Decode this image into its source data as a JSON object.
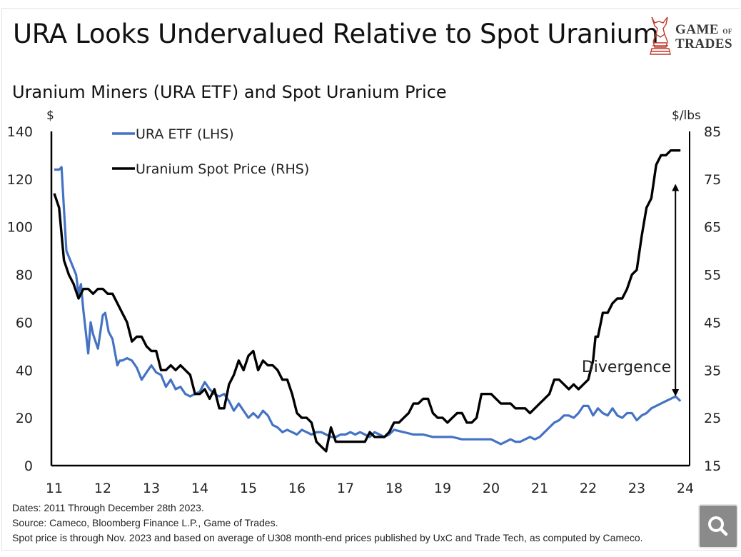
{
  "header": {
    "title": "URA Looks Undervalued Relative to Spot Uranium",
    "logo": {
      "icon": "bull-knight-chess-icon",
      "line1": "GAME",
      "line1_small": "OF",
      "line2": "TRADES",
      "color": "#c0392b"
    }
  },
  "chart_data": {
    "type": "line",
    "title": "Uranium Miners (URA ETF) and Spot Uranium Price",
    "xlabel": "",
    "ylabel_left": "$",
    "ylabel_right": "$/lbs",
    "x_ticks": [
      "11",
      "12",
      "13",
      "14",
      "15",
      "16",
      "17",
      "18",
      "19",
      "20",
      "21",
      "22",
      "23",
      "24"
    ],
    "xlim": [
      2011,
      2024
    ],
    "y_left": {
      "ticks": [
        "0",
        "20",
        "40",
        "60",
        "80",
        "100",
        "120",
        "140"
      ],
      "lim": [
        0,
        140
      ]
    },
    "y_right": {
      "ticks": [
        "15",
        "25",
        "35",
        "45",
        "55",
        "65",
        "75",
        "85"
      ],
      "lim": [
        15,
        85
      ]
    },
    "grid": false,
    "legend": {
      "placement": "top-left",
      "entries": [
        {
          "label": "URA ETF (LHS)",
          "color": "#4472c4"
        },
        {
          "label": "Uranium Spot Price (RHS)",
          "color": "#000000"
        }
      ]
    },
    "annotation": {
      "text": "Divergence",
      "type": "double-arrow",
      "x": 2023.9,
      "y_right_from": 29.5,
      "y_right_to": 74
    },
    "series": [
      {
        "name": "URA ETF (LHS)",
        "axis": "left",
        "color": "#4472c4",
        "x": [
          2011.0,
          2011.1,
          2011.15,
          2011.25,
          2011.35,
          2011.45,
          2011.5,
          2011.55,
          2011.6,
          2011.7,
          2011.75,
          2011.8,
          2011.9,
          2012.0,
          2012.05,
          2012.12,
          2012.2,
          2012.3,
          2012.35,
          2012.4,
          2012.5,
          2012.6,
          2012.7,
          2012.8,
          2012.9,
          2013.0,
          2013.1,
          2013.2,
          2013.3,
          2013.4,
          2013.5,
          2013.6,
          2013.7,
          2013.8,
          2013.9,
          2014.0,
          2014.1,
          2014.2,
          2014.3,
          2014.4,
          2014.5,
          2014.6,
          2014.7,
          2014.8,
          2014.9,
          2015.0,
          2015.1,
          2015.2,
          2015.3,
          2015.4,
          2015.5,
          2015.6,
          2015.7,
          2015.8,
          2015.9,
          2016.0,
          2016.1,
          2016.2,
          2016.3,
          2016.4,
          2016.5,
          2016.6,
          2016.7,
          2016.8,
          2016.9,
          2017.0,
          2017.1,
          2017.2,
          2017.3,
          2017.4,
          2017.5,
          2017.6,
          2017.7,
          2017.8,
          2017.9,
          2018.0,
          2018.2,
          2018.4,
          2018.6,
          2018.8,
          2019.0,
          2019.2,
          2019.4,
          2019.6,
          2019.8,
          2020.0,
          2020.1,
          2020.2,
          2020.3,
          2020.4,
          2020.5,
          2020.6,
          2020.7,
          2020.8,
          2020.9,
          2021.0,
          2021.1,
          2021.2,
          2021.3,
          2021.4,
          2021.5,
          2021.6,
          2021.7,
          2021.8,
          2021.9,
          2022.0,
          2022.1,
          2022.2,
          2022.3,
          2022.4,
          2022.5,
          2022.6,
          2022.7,
          2022.8,
          2022.9,
          2023.0,
          2023.1,
          2023.2,
          2023.3,
          2023.4,
          2023.5,
          2023.6,
          2023.7,
          2023.8,
          2023.9
        ],
        "y": [
          124,
          124,
          125,
          90,
          85,
          80,
          72,
          76,
          65,
          47,
          60,
          55,
          49,
          63,
          64,
          56,
          53,
          42,
          44,
          44,
          45,
          44,
          41,
          36,
          39,
          42,
          39,
          38,
          33,
          36,
          32,
          33,
          30,
          29,
          30,
          31,
          35,
          32,
          30,
          29,
          30,
          27,
          23,
          26,
          23,
          20,
          22,
          20,
          23,
          21,
          17,
          16,
          14,
          15,
          14,
          13,
          15,
          14,
          13,
          14,
          14,
          13,
          12,
          12,
          13,
          13,
          14,
          13,
          14,
          13,
          12,
          14,
          13,
          12,
          13,
          15,
          14,
          13,
          13,
          12,
          12,
          12,
          11,
          11,
          11,
          11,
          10,
          9,
          10,
          11,
          10,
          10,
          11,
          12,
          11,
          12,
          14,
          16,
          18,
          19,
          21,
          21,
          20,
          22,
          25,
          25,
          21,
          24,
          22,
          21,
          24,
          21,
          20,
          22,
          22,
          19,
          21,
          22,
          24,
          25,
          26,
          27,
          28,
          29,
          27
        ]
      },
      {
        "name": "Uranium Spot Price (RHS)",
        "axis": "right",
        "color": "#000000",
        "x": [
          2011.0,
          2011.1,
          2011.2,
          2011.3,
          2011.4,
          2011.5,
          2011.6,
          2011.7,
          2011.8,
          2011.9,
          2012.0,
          2012.1,
          2012.2,
          2012.3,
          2012.4,
          2012.5,
          2012.6,
          2012.7,
          2012.8,
          2012.9,
          2013.0,
          2013.1,
          2013.2,
          2013.3,
          2013.4,
          2013.5,
          2013.6,
          2013.7,
          2013.8,
          2013.9,
          2014.0,
          2014.1,
          2014.2,
          2014.3,
          2014.4,
          2014.5,
          2014.6,
          2014.7,
          2014.8,
          2014.9,
          2015.0,
          2015.1,
          2015.2,
          2015.3,
          2015.4,
          2015.5,
          2015.6,
          2015.7,
          2015.8,
          2015.9,
          2016.0,
          2016.1,
          2016.2,
          2016.3,
          2016.4,
          2016.5,
          2016.6,
          2016.7,
          2016.8,
          2016.9,
          2017.0,
          2017.1,
          2017.2,
          2017.3,
          2017.4,
          2017.5,
          2017.6,
          2017.7,
          2017.8,
          2017.9,
          2018.0,
          2018.1,
          2018.2,
          2018.3,
          2018.4,
          2018.5,
          2018.6,
          2018.7,
          2018.8,
          2018.9,
          2019.0,
          2019.1,
          2019.2,
          2019.3,
          2019.4,
          2019.5,
          2019.6,
          2019.7,
          2019.8,
          2019.9,
          2020.0,
          2020.1,
          2020.2,
          2020.3,
          2020.4,
          2020.5,
          2020.6,
          2020.7,
          2020.8,
          2020.9,
          2021.0,
          2021.1,
          2021.2,
          2021.3,
          2021.4,
          2021.5,
          2021.6,
          2021.7,
          2021.8,
          2021.9,
          2022.0,
          2022.1,
          2022.15,
          2022.2,
          2022.3,
          2022.4,
          2022.5,
          2022.6,
          2022.7,
          2022.8,
          2022.9,
          2023.0,
          2023.1,
          2023.2,
          2023.3,
          2023.4,
          2023.5,
          2023.6,
          2023.7,
          2023.75,
          2023.8,
          2023.9
        ],
        "y": [
          72,
          69,
          58,
          55,
          53,
          50,
          52,
          52,
          51,
          52,
          52,
          51,
          51,
          49,
          47,
          45,
          41,
          42,
          42,
          40,
          39,
          39,
          35,
          35,
          36,
          35,
          36,
          35,
          34,
          30,
          30,
          31,
          29,
          31,
          27,
          27,
          32,
          34,
          37,
          35,
          38,
          39,
          35,
          37,
          36,
          36,
          35,
          33,
          33,
          30,
          26,
          25,
          25,
          24,
          20,
          19,
          18,
          23,
          20,
          20,
          20,
          20,
          20,
          20,
          20,
          22,
          21,
          21,
          21,
          22,
          24,
          24,
          25,
          26,
          28,
          28,
          29,
          29,
          26,
          25,
          25,
          24,
          25,
          26,
          26,
          24,
          24,
          25,
          30,
          30,
          30,
          29,
          28,
          28,
          28,
          27,
          27,
          27,
          26,
          27,
          28,
          29,
          30,
          33,
          33,
          32,
          31,
          32,
          31,
          32,
          33,
          37,
          42,
          42,
          47,
          47,
          49,
          50,
          50,
          52,
          55,
          56,
          63,
          69,
          71,
          78,
          80,
          80,
          81,
          81,
          81,
          81
        ]
      }
    ]
  },
  "footer": {
    "dates": "Dates: 2011 Through December 28th 2023.",
    "source": "Source: Cameco, Bloomberg Finance L.P., Game of Trades.",
    "note": "Spot price is through Nov. 2023 and based on average of U308 month-end prices published by UxC and Trade Tech, as computed by Cameco."
  },
  "controls": {
    "zoom_button_icon": "magnifier-icon"
  }
}
